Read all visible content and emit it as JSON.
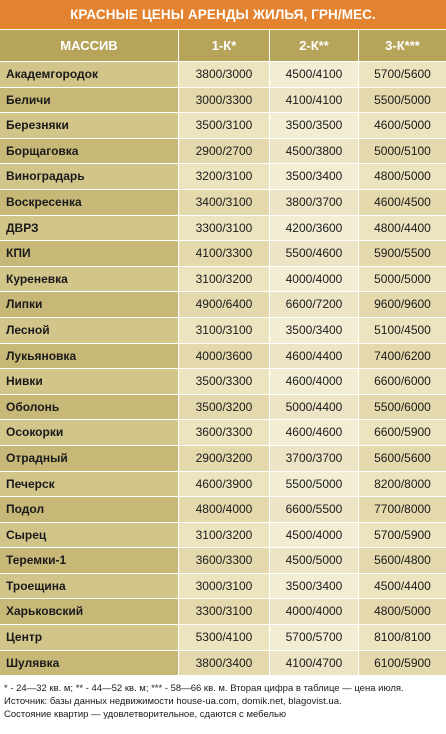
{
  "title": "КРАСНЫЕ ЦЕНЫ АРЕНДЫ ЖИЛЬЯ, ГРН/МЕС.",
  "columns": [
    "МАССИВ",
    "1-К*",
    "2-К**",
    "3-К***"
  ],
  "rows": [
    {
      "name": "Академгородок",
      "k1": "3800/3000",
      "k2": "4500/4100",
      "k3": "5700/5600"
    },
    {
      "name": "Беличи",
      "k1": "3000/3300",
      "k2": "4100/4100",
      "k3": "5500/5000"
    },
    {
      "name": "Березняки",
      "k1": "3500/3100",
      "k2": "3500/3500",
      "k3": "4600/5000"
    },
    {
      "name": "Борщаговка",
      "k1": "2900/2700",
      "k2": "4500/3800",
      "k3": "5000/5100"
    },
    {
      "name": "Виноградарь",
      "k1": "3200/3100",
      "k2": "3500/3400",
      "k3": "4800/5000"
    },
    {
      "name": "Воскресенка",
      "k1": "3400/3100",
      "k2": "3800/3700",
      "k3": "4600/4500"
    },
    {
      "name": "ДВРЗ",
      "k1": "3300/3100",
      "k2": "4200/3600",
      "k3": "4800/4400"
    },
    {
      "name": "КПИ",
      "k1": "4100/3300",
      "k2": "5500/4600",
      "k3": "5900/5500"
    },
    {
      "name": "Куреневка",
      "k1": "3100/3200",
      "k2": "4000/4000",
      "k3": "5000/5000"
    },
    {
      "name": "Липки",
      "k1": "4900/6400",
      "k2": "6600/7200",
      "k3": "9600/9600"
    },
    {
      "name": "Лесной",
      "k1": "3100/3100",
      "k2": "3500/3400",
      "k3": "5100/4500"
    },
    {
      "name": "Лукьяновка",
      "k1": "4000/3600",
      "k2": "4600/4400",
      "k3": "7400/6200"
    },
    {
      "name": "Нивки",
      "k1": "3500/3300",
      "k2": "4600/4000",
      "k3": "6600/6000"
    },
    {
      "name": "Оболонь",
      "k1": "3500/3200",
      "k2": "5000/4400",
      "k3": "5500/6000"
    },
    {
      "name": "Осокорки",
      "k1": "3600/3300",
      "k2": "4600/4600",
      "k3": "6600/5900"
    },
    {
      "name": "Отрадный",
      "k1": "2900/3200",
      "k2": "3700/3700",
      "k3": "5600/5600"
    },
    {
      "name": "Печерск",
      "k1": "4600/3900",
      "k2": "5500/5000",
      "k3": "8200/8000"
    },
    {
      "name": "Подол",
      "k1": "4800/4000",
      "k2": "6600/5500",
      "k3": "7700/8000"
    },
    {
      "name": "Сырец",
      "k1": "3100/3200",
      "k2": "4500/4000",
      "k3": "5700/5900"
    },
    {
      "name": "Теремки-1",
      "k1": "3600/3300",
      "k2": "4500/5000",
      "k3": "5600/4800"
    },
    {
      "name": "Троещина",
      "k1": "3000/3100",
      "k2": "3500/3400",
      "k3": "4500/4400"
    },
    {
      "name": "Харьковский",
      "k1": "3300/3100",
      "k2": "4000/4000",
      "k3": "4800/5000"
    },
    {
      "name": "Центр",
      "k1": "5300/4100",
      "k2": "5700/5700",
      "k3": "8100/8100"
    },
    {
      "name": "Шулявка",
      "k1": "3800/3400",
      "k2": "4100/4700",
      "k3": "6100/5900"
    }
  ],
  "footnotes": [
    "* - 24—32 кв. м; ** - 44—52 кв. м; *** - 58—66 кв. м. Вторая цифра в таблице — цена июля.",
    "Источник: базы данных недвижимости house-ua.com, domik.net, blagovist.ua.",
    "Состояние квартир — удовлетворительное, сдаются с мебелью"
  ],
  "colors": {
    "title_bg": "#e4832f",
    "header_bg": "#b6a45a",
    "name_bg": "#d2c58a",
    "value_bg": "#ece3bf"
  }
}
